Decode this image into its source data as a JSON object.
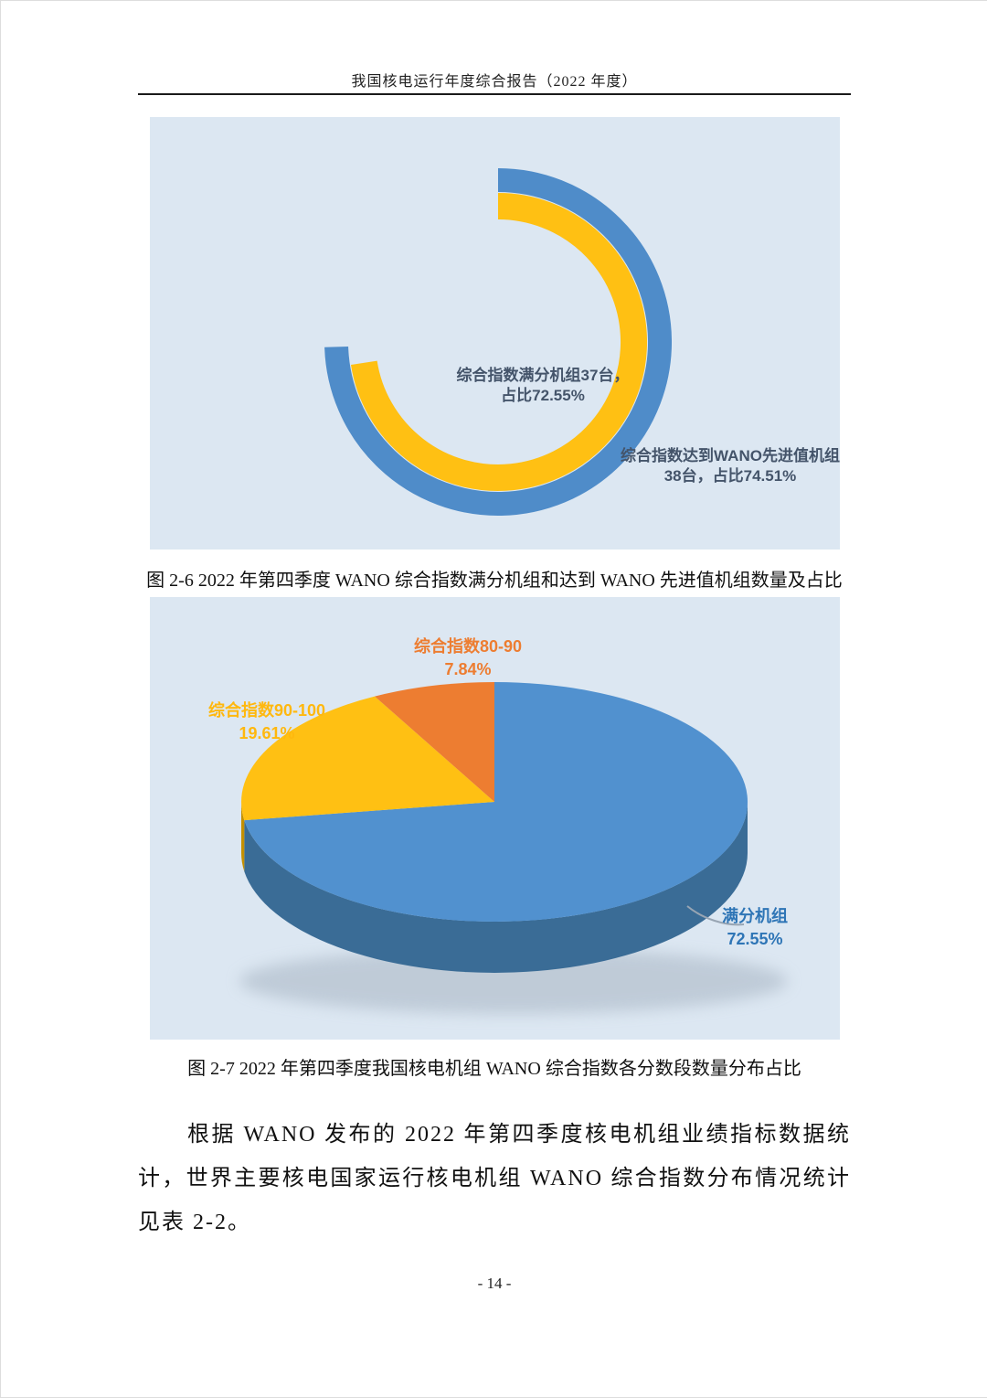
{
  "page": {
    "header_title": "我国核电运行年度综合报告（2022 年度）",
    "page_number": "- 14 -"
  },
  "figure_2_6": {
    "caption": "图 2-6 2022 年第四季度 WANO 综合指数满分机组和达到 WANO 先进值机组数量及占比"
  },
  "figure_2_7": {
    "caption": "图 2-7 2022 年第四季度我国核电机组 WANO 综合指数各分数段数量分布占比"
  },
  "paragraph": {
    "text": "根据 WANO 发布的 2022 年第四季度核电机组业绩指标数据统计，世界主要核电国家运行核电机组 WANO 综合指数分布情况统计见表 2-2。"
  },
  "chart_data": [
    {
      "type": "radial_bar",
      "title": "2022年第四季度WANO综合指数满分机组和达到WANO先进值机组数量及占比",
      "direction": "clockwise",
      "start_angle_deg": 0,
      "background": "#dce7f2",
      "label_color": "#44546A",
      "series": [
        {
          "name": "综合指数达到WANO先进值机组",
          "ring": "outer",
          "units": 38,
          "percent": 74.51,
          "color": "#4F8CC9",
          "label_lines": [
            "综合指数达到WANO先进值机组",
            "38台，占比74.51%"
          ]
        },
        {
          "name": "综合指数满分机组",
          "ring": "inner",
          "units": 37,
          "percent": 72.55,
          "color": "#FFC013",
          "label_lines": [
            "综合指数满分机组37台，",
            "占比72.55%"
          ]
        }
      ]
    },
    {
      "type": "pie",
      "style": "3d",
      "title": "2022年第四季度我国核电机组WANO综合指数各分数段数量分布占比",
      "background": "#dce7f2",
      "slices": [
        {
          "label": "满分机组",
          "percent": 72.55,
          "color": "#5191CF",
          "side_color": "#3A6C96",
          "label_color": "#2E75B6",
          "label_lines": [
            "满分机组",
            "72.55%"
          ]
        },
        {
          "label": "综合指数90-100",
          "percent": 19.61,
          "color": "#FFC013",
          "side_color": "#C49000",
          "label_color": "#FFB80E",
          "label_lines": [
            "综合指数90-100",
            "19.61%"
          ]
        },
        {
          "label": "综合指数80-90",
          "percent": 7.84,
          "color": "#ED7D31",
          "side_color": "#B05A1C",
          "label_color": "#ED7D31",
          "label_lines": [
            "综合指数80-90",
            "7.84%"
          ]
        }
      ]
    }
  ]
}
